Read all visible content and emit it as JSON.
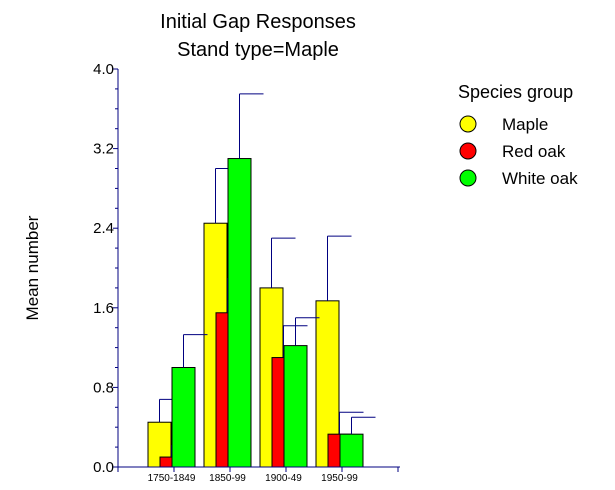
{
  "chart_data": {
    "type": "bar",
    "title": "Initial Gap Responses",
    "subtitle": "Stand type=Maple",
    "xlabel": "",
    "ylabel": "Mean number",
    "ylim": [
      0,
      4.0
    ],
    "yticks": [
      "0.0",
      "0.8",
      "1.6",
      "2.4",
      "3.2",
      "4.0"
    ],
    "categories": [
      "1750-1849",
      "1850-99",
      "1900-49",
      "1950-99"
    ],
    "legend_title": "Species group",
    "legend_position": "top-right",
    "grid": false,
    "error_bars": "upper",
    "series": [
      {
        "name": "Maple",
        "color": "#ffff00",
        "values": [
          0.45,
          2.45,
          1.8,
          1.67
        ],
        "errors": [
          0.23,
          0.55,
          0.5,
          0.65
        ]
      },
      {
        "name": "Red oak",
        "color": "#ff0000",
        "values": [
          0.1,
          1.55,
          1.1,
          0.33
        ],
        "errors": [
          0.12,
          0.35,
          0.32,
          0.22
        ]
      },
      {
        "name": "White oak",
        "color": "#00ff00",
        "values": [
          1.0,
          3.1,
          1.22,
          0.33
        ],
        "errors": [
          0.33,
          0.65,
          0.28,
          0.17
        ]
      }
    ]
  }
}
